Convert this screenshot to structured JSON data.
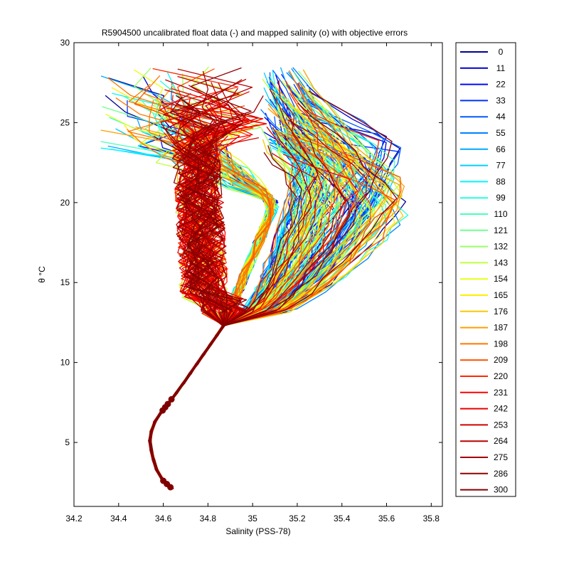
{
  "chart_data": {
    "type": "line",
    "title": "R5904500 uncalibrated float data (-) and mapped salinity (o) with objective errors",
    "xlabel": "Salinity (PSS-78)",
    "ylabel": "θ °C",
    "xlim": [
      34.2,
      35.85
    ],
    "ylim": [
      1,
      30
    ],
    "xticks": [
      "34.2",
      "34.4",
      "34.6",
      "34.8",
      "35",
      "35.2",
      "35.4",
      "35.6",
      "35.8"
    ],
    "yticks": [
      "5",
      "10",
      "15",
      "20",
      "25",
      "30"
    ],
    "legend_position": "right-outside",
    "legend_entries": [
      "0",
      "11",
      "22",
      "33",
      "44",
      "55",
      "66",
      "77",
      "88",
      "99",
      "110",
      "121",
      "132",
      "143",
      "154",
      "165",
      "176",
      "187",
      "198",
      "209",
      "220",
      "231",
      "242",
      "253",
      "264",
      "275",
      "286",
      "300"
    ],
    "legend_colors": [
      "#00008f",
      "#0000cc",
      "#0008ff",
      "#0030ff",
      "#0058ff",
      "#0080ff",
      "#00a8ff",
      "#00d0ff",
      "#00f8ff",
      "#20ffdf",
      "#48ffb7",
      "#70ff8f",
      "#98ff67",
      "#c0ff3f",
      "#e8ff17",
      "#ffef00",
      "#ffc700",
      "#ff9f00",
      "#ff7700",
      "#ff4f00",
      "#ff2700",
      "#ff0000",
      "#e70000",
      "#d00000",
      "#b80000",
      "#a00000",
      "#900000",
      "#800000"
    ],
    "lower_curve": [
      [
        34.64,
        2.1
      ],
      [
        34.6,
        2.6
      ],
      [
        34.57,
        3.3
      ],
      [
        34.55,
        4.2
      ],
      [
        34.54,
        5.1
      ],
      [
        34.55,
        6.0
      ],
      [
        34.58,
        6.7
      ],
      [
        34.62,
        7.4
      ],
      [
        34.67,
        8.3
      ],
      [
        34.72,
        9.3
      ],
      [
        34.77,
        10.3
      ],
      [
        34.82,
        11.3
      ],
      [
        34.87,
        12.3
      ]
    ],
    "upper_envelope": {
      "high_salinity_tip": [
        35.72,
        23.0
      ],
      "low_salinity_surface": [
        34.32,
        27.5
      ],
      "core_salinity_range": [
        34.7,
        34.95
      ],
      "core_temperature_range": [
        12.3,
        28.7
      ]
    }
  }
}
